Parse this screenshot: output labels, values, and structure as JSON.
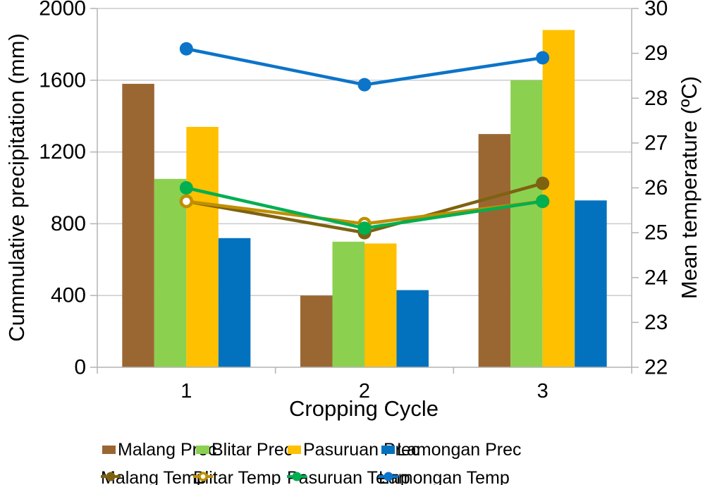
{
  "chart_data": {
    "type": "combo-bar-line",
    "categories": [
      "1",
      "2",
      "3"
    ],
    "x_axis": {
      "label": "Cropping Cycle",
      "tick_labels": [
        "1",
        "2",
        "3"
      ]
    },
    "left_axis": {
      "label": "Cummulative precipitation (mm)",
      "min": 0,
      "max": 2000,
      "step": 400,
      "ticks": [
        0,
        400,
        800,
        1200,
        1600,
        2000
      ]
    },
    "right_axis": {
      "label": "Mean temperature (ºC)",
      "min": 22,
      "max": 30,
      "step": 1,
      "ticks": [
        22,
        23,
        24,
        25,
        26,
        27,
        28,
        29,
        30
      ]
    },
    "grid": "horizontal-major",
    "legend_position": "bottom",
    "bar_series": [
      {
        "name": "Malang Prec",
        "color": "#9A6733",
        "values": [
          1580,
          400,
          1300
        ]
      },
      {
        "name": "Blitar Prec",
        "color": "#8CD050",
        "values": [
          1050,
          700,
          1600
        ]
      },
      {
        "name": "Pasuruan Prec",
        "color": "#FFC000",
        "values": [
          1340,
          690,
          1880
        ]
      },
      {
        "name": "Lamongan Prec",
        "color": "#0272BF",
        "values": [
          720,
          430,
          930
        ]
      }
    ],
    "line_series": [
      {
        "name": "Malang Temp",
        "color": "#7E6210",
        "marker": "filled",
        "values": [
          25.7,
          25.0,
          26.1
        ]
      },
      {
        "name": "Blitar Temp",
        "color": "#BF9000",
        "marker": "open",
        "values": [
          25.7,
          25.2,
          25.7
        ]
      },
      {
        "name": "Pasuruan Temp",
        "color": "#00AF50",
        "marker": "filled",
        "values": [
          26.0,
          25.1,
          25.7
        ]
      },
      {
        "name": "Lamongan Temp",
        "color": "#0C74C9",
        "marker": "filled",
        "values": [
          29.1,
          28.3,
          28.9
        ]
      }
    ]
  },
  "styles": {
    "grid_color": "#cccccc",
    "axis_color": "#b3b3b3",
    "text_color": "#000000",
    "background": "#ffffff"
  }
}
